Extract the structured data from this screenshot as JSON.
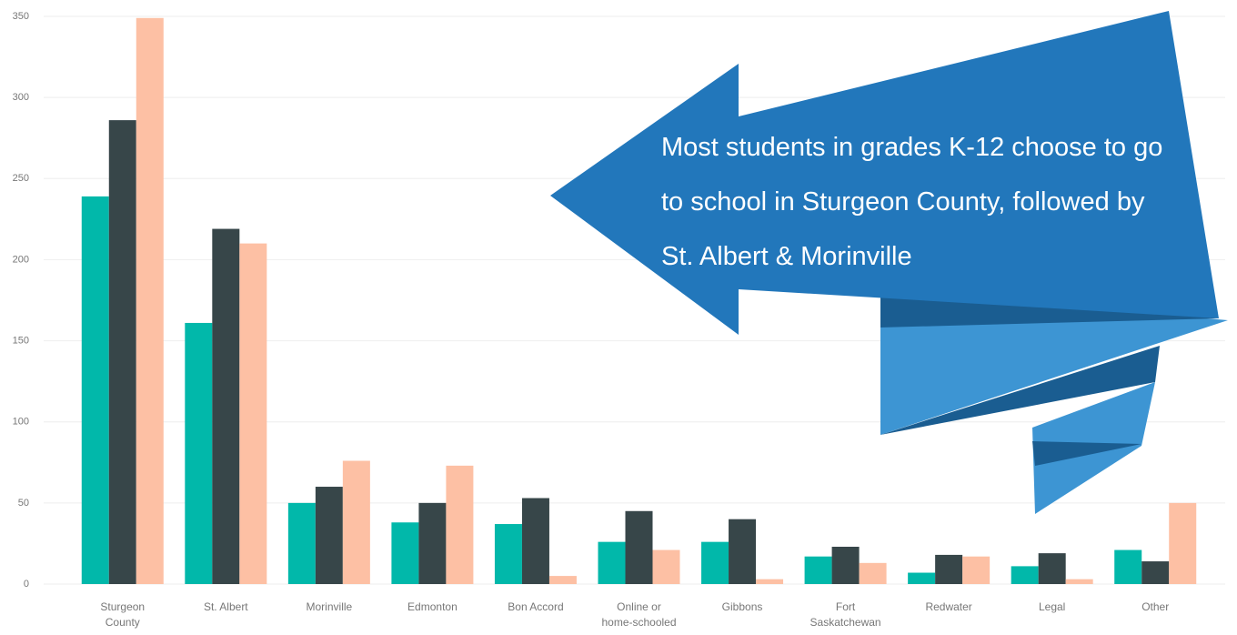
{
  "chart_data": {
    "type": "bar",
    "annotation": "Most students in grades K-12 choose to go to school in Sturgeon County, followed by St. Albert & Morinville",
    "categories": [
      "Sturgeon County",
      "St. Albert",
      "Morinville",
      "Edmonton",
      "Bon Accord",
      "Online or home-schooled",
      "Gibbons",
      "Fort Saskatchewan",
      "Redwater",
      "Legal",
      "Other"
    ],
    "series": [
      {
        "color": "#01b8aa",
        "values": [
          239,
          161,
          50,
          38,
          37,
          26,
          26,
          17,
          7,
          11,
          21
        ]
      },
      {
        "color": "#374649",
        "values": [
          286,
          219,
          60,
          50,
          53,
          45,
          40,
          23,
          18,
          19,
          14
        ]
      },
      {
        "color": "#fdc0a4",
        "values": [
          349,
          210,
          76,
          73,
          5,
          21,
          3,
          13,
          17,
          3,
          50
        ]
      }
    ],
    "ylim": [
      0,
      350
    ],
    "yticks": [
      0,
      50,
      100,
      150,
      200,
      250,
      300,
      350
    ],
    "grid": true
  }
}
